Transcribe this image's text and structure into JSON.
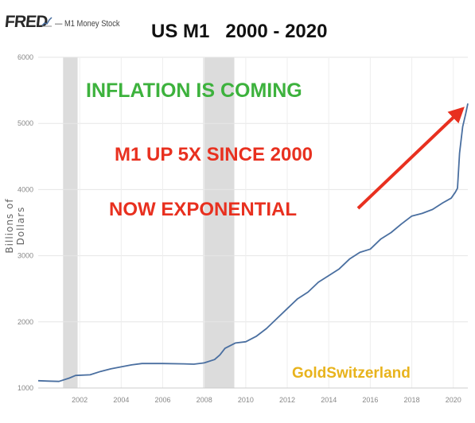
{
  "header": {
    "logo_text": "FRED",
    "series_legend": "— M1 Money Stock",
    "title": "US M1   2000 - 2020"
  },
  "annotations": {
    "inflation": "INFLATION IS COMING",
    "m1_up": "M1 UP 5X SINCE 2000",
    "exponential": "NOW EXPONENTIAL",
    "watermark": "GoldSwitzerland"
  },
  "colors": {
    "line": "#4a6fa0",
    "recession": "#dcdcdc",
    "green_text": "#3db23d",
    "red_text": "#e8301f",
    "arrow": "#e8301f",
    "watermark": "#e8b31c"
  },
  "chart_data": {
    "type": "line",
    "title": "US M1   2000 - 2020",
    "ylabel": "Billions of Dollars",
    "xlabel": "",
    "xlim": [
      2000.0,
      2020.7
    ],
    "ylim": [
      1000,
      6000
    ],
    "x_ticks": [
      "2002",
      "2004",
      "2006",
      "2008",
      "2010",
      "2012",
      "2014",
      "2016",
      "2018",
      "2020"
    ],
    "y_ticks": [
      "1000",
      "2000",
      "3000",
      "4000",
      "5000",
      "6000"
    ],
    "grid": true,
    "recession_bands": [
      [
        2001.2,
        2001.9
      ],
      [
        2007.95,
        2009.45
      ]
    ],
    "series": [
      {
        "name": "M1 Money Stock",
        "x": [
          2000.0,
          2000.5,
          2001.0,
          2001.5,
          2001.8,
          2002.5,
          2003.0,
          2003.5,
          2004.0,
          2004.5,
          2005.0,
          2006.0,
          2007.0,
          2007.5,
          2008.0,
          2008.5,
          2008.75,
          2009.0,
          2009.5,
          2010.0,
          2010.5,
          2011.0,
          2011.5,
          2012.0,
          2012.5,
          2013.0,
          2013.5,
          2014.0,
          2014.5,
          2015.0,
          2015.5,
          2016.0,
          2016.5,
          2017.0,
          2017.5,
          2018.0,
          2018.5,
          2019.0,
          2019.5,
          2019.9,
          2020.1,
          2020.2,
          2020.3,
          2020.45,
          2020.6,
          2020.7
        ],
        "y": [
          1110,
          1105,
          1100,
          1150,
          1190,
          1200,
          1250,
          1290,
          1320,
          1350,
          1370,
          1370,
          1365,
          1360,
          1380,
          1430,
          1500,
          1600,
          1680,
          1700,
          1780,
          1900,
          2050,
          2200,
          2350,
          2450,
          2600,
          2700,
          2800,
          2950,
          3050,
          3100,
          3250,
          3350,
          3480,
          3600,
          3640,
          3700,
          3800,
          3870,
          3960,
          4020,
          4550,
          4950,
          5150,
          5300
        ]
      }
    ]
  }
}
